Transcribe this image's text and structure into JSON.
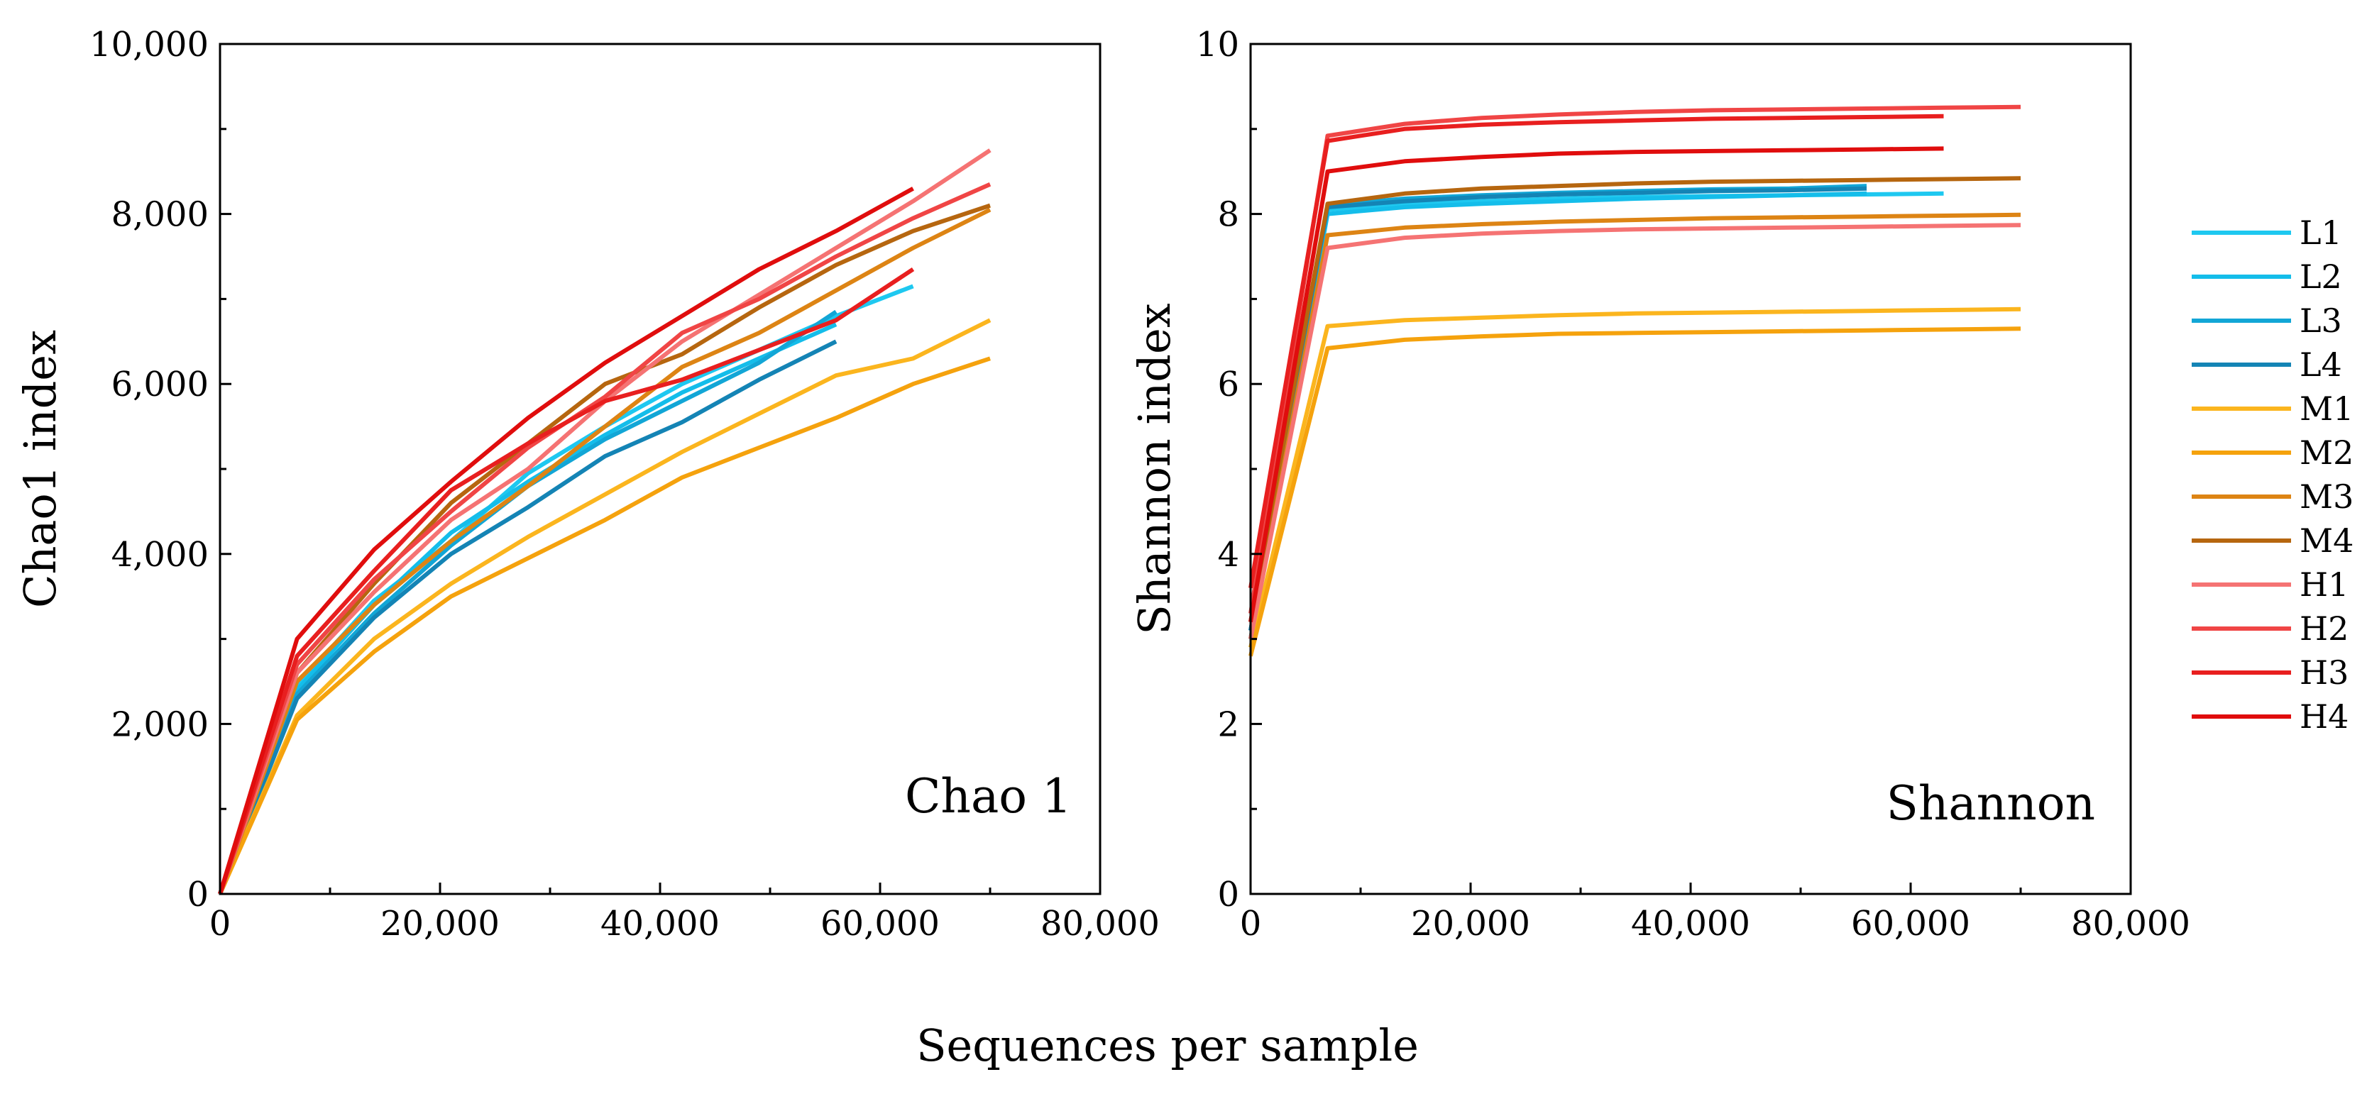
{
  "figure": {
    "xlabel": "Sequences per sample"
  },
  "legend": {
    "placement": "right",
    "entries": [
      "L1",
      "L2",
      "L3",
      "L4",
      "M1",
      "M2",
      "M3",
      "M4",
      "H1",
      "H2",
      "H3",
      "H4"
    ]
  },
  "colors": {
    "L1": "#1ec8f0",
    "L2": "#14bdea",
    "L3": "#12a6d6",
    "L4": "#1484b5",
    "M1": "#fbb51e",
    "M2": "#f5a20d",
    "M3": "#dd8414",
    "M4": "#b6660f",
    "H1": "#f57373",
    "H2": "#f04545",
    "H3": "#e81f1f",
    "H4": "#e00d0d"
  },
  "chart_data": [
    {
      "type": "line",
      "annotation": "Chao 1",
      "xlabel": "",
      "ylabel": "Chao1 index",
      "xlim": [
        0,
        80000
      ],
      "ylim": [
        0,
        10000
      ],
      "xticks": [
        "0",
        "20,000",
        "40,000",
        "60,000",
        "80,000"
      ],
      "yticks": [
        "0",
        "2,000",
        "4,000",
        "6,000",
        "8,000",
        "10,000"
      ],
      "grid": false,
      "series": [
        {
          "name": "L1",
          "x": [
            0,
            7000,
            14000,
            21000,
            28000,
            35000,
            42000,
            49000,
            56000,
            63000
          ],
          "y": [
            0,
            2450,
            3450,
            4150,
            4950,
            5500,
            6000,
            6400,
            6800,
            7150
          ]
        },
        {
          "name": "L2",
          "x": [
            0,
            7000,
            14000,
            21000,
            28000,
            35000,
            42000,
            49000,
            56000
          ],
          "y": [
            0,
            2400,
            3400,
            4250,
            4850,
            5400,
            5900,
            6300,
            6700
          ]
        },
        {
          "name": "L3",
          "x": [
            0,
            7000,
            14000,
            21000,
            28000,
            35000,
            42000,
            49000,
            56000
          ],
          "y": [
            0,
            2350,
            3300,
            4100,
            4800,
            5350,
            5800,
            6250,
            6850
          ]
        },
        {
          "name": "L4",
          "x": [
            0,
            7000,
            14000,
            21000,
            28000,
            35000,
            42000,
            49000,
            56000
          ],
          "y": [
            0,
            2300,
            3250,
            4000,
            4550,
            5150,
            5550,
            6050,
            6500
          ]
        },
        {
          "name": "M1",
          "x": [
            0,
            7000,
            14000,
            21000,
            28000,
            35000,
            42000,
            49000,
            56000,
            63000,
            70000
          ],
          "y": [
            0,
            2100,
            3000,
            3650,
            4200,
            4700,
            5200,
            5650,
            6100,
            6300,
            6750
          ]
        },
        {
          "name": "M2",
          "x": [
            0,
            7000,
            14000,
            21000,
            28000,
            35000,
            42000,
            49000,
            56000,
            63000,
            70000
          ],
          "y": [
            0,
            2050,
            2850,
            3500,
            3950,
            4400,
            4900,
            5250,
            5600,
            6000,
            6300
          ]
        },
        {
          "name": "M3",
          "x": [
            0,
            7000,
            14000,
            21000,
            28000,
            35000,
            42000,
            49000,
            56000,
            63000,
            70000
          ],
          "y": [
            0,
            2500,
            3400,
            4150,
            4800,
            5500,
            6200,
            6600,
            7100,
            7600,
            8050
          ]
        },
        {
          "name": "M4",
          "x": [
            0,
            7000,
            14000,
            21000,
            28000,
            35000,
            42000,
            49000,
            56000,
            63000,
            70000
          ],
          "y": [
            0,
            2600,
            3650,
            4600,
            5300,
            6000,
            6350,
            6900,
            7400,
            7800,
            8100
          ]
        },
        {
          "name": "H1",
          "x": [
            0,
            7000,
            14000,
            21000,
            28000,
            35000,
            42000,
            49000,
            56000,
            63000,
            70000
          ],
          "y": [
            0,
            2600,
            3550,
            4400,
            5000,
            5800,
            6500,
            7050,
            7600,
            8150,
            8750
          ]
        },
        {
          "name": "H2",
          "x": [
            0,
            7000,
            14000,
            21000,
            28000,
            35000,
            42000,
            49000,
            56000,
            63000,
            70000
          ],
          "y": [
            0,
            2700,
            3700,
            4500,
            5250,
            5850,
            6600,
            7000,
            7500,
            7950,
            8350
          ]
        },
        {
          "name": "H3",
          "x": [
            0,
            7000,
            14000,
            21000,
            28000,
            35000,
            42000,
            49000,
            56000,
            63000
          ],
          "y": [
            0,
            2800,
            3800,
            4750,
            5300,
            5800,
            6050,
            6400,
            6750,
            7350
          ]
        },
        {
          "name": "H4",
          "x": [
            0,
            7000,
            14000,
            21000,
            28000,
            35000,
            42000,
            49000,
            56000,
            63000
          ],
          "y": [
            0,
            3000,
            4050,
            4850,
            5600,
            6250,
            6800,
            7350,
            7800,
            8300
          ]
        }
      ]
    },
    {
      "type": "line",
      "annotation": "Shannon",
      "xlabel": "",
      "ylabel": "Shannon index",
      "xlim": [
        0,
        80000
      ],
      "ylim": [
        0,
        10
      ],
      "xticks": [
        "0",
        "20,000",
        "40,000",
        "60,000",
        "80,000"
      ],
      "yticks": [
        "0",
        "2",
        "4",
        "6",
        "8",
        "10"
      ],
      "grid": false,
      "series": [
        {
          "name": "L1",
          "x": [
            0,
            7000,
            14000,
            21000,
            28000,
            35000,
            42000,
            49000,
            56000,
            63000
          ],
          "y": [
            3.0,
            8.05,
            8.12,
            8.15,
            8.18,
            8.2,
            8.21,
            8.22,
            8.23,
            8.24
          ]
        },
        {
          "name": "L2",
          "x": [
            0,
            7000,
            14000,
            21000,
            28000,
            35000,
            42000,
            49000,
            56000
          ],
          "y": [
            3.0,
            8.0,
            8.08,
            8.12,
            8.15,
            8.18,
            8.2,
            8.22,
            8.24
          ]
        },
        {
          "name": "L3",
          "x": [
            0,
            7000,
            14000,
            21000,
            28000,
            35000,
            42000,
            49000,
            56000
          ],
          "y": [
            3.1,
            8.1,
            8.18,
            8.22,
            8.25,
            8.27,
            8.29,
            8.3,
            8.33
          ]
        },
        {
          "name": "L4",
          "x": [
            0,
            7000,
            14000,
            21000,
            28000,
            35000,
            42000,
            49000,
            56000
          ],
          "y": [
            3.1,
            8.08,
            8.15,
            8.2,
            8.23,
            8.25,
            8.27,
            8.28,
            8.3
          ]
        },
        {
          "name": "M1",
          "x": [
            0,
            7000,
            14000,
            21000,
            28000,
            35000,
            42000,
            49000,
            56000,
            63000,
            70000
          ],
          "y": [
            2.9,
            6.68,
            6.75,
            6.78,
            6.81,
            6.83,
            6.84,
            6.85,
            6.86,
            6.87,
            6.88
          ]
        },
        {
          "name": "M2",
          "x": [
            0,
            7000,
            14000,
            21000,
            28000,
            35000,
            42000,
            49000,
            56000,
            63000,
            70000
          ],
          "y": [
            2.8,
            6.42,
            6.52,
            6.56,
            6.59,
            6.6,
            6.61,
            6.62,
            6.63,
            6.64,
            6.65
          ]
        },
        {
          "name": "M3",
          "x": [
            0,
            7000,
            14000,
            21000,
            28000,
            35000,
            42000,
            49000,
            56000,
            63000,
            70000
          ],
          "y": [
            3.0,
            7.75,
            7.84,
            7.88,
            7.91,
            7.93,
            7.95,
            7.96,
            7.97,
            7.98,
            7.99
          ]
        },
        {
          "name": "M4",
          "x": [
            0,
            7000,
            14000,
            21000,
            28000,
            35000,
            42000,
            49000,
            56000,
            63000,
            70000
          ],
          "y": [
            3.2,
            8.12,
            8.24,
            8.3,
            8.33,
            8.36,
            8.38,
            8.39,
            8.4,
            8.41,
            8.42
          ]
        },
        {
          "name": "H1",
          "x": [
            0,
            7000,
            14000,
            21000,
            28000,
            35000,
            42000,
            49000,
            56000,
            63000,
            70000
          ],
          "y": [
            3.0,
            7.6,
            7.72,
            7.77,
            7.8,
            7.82,
            7.83,
            7.84,
            7.85,
            7.86,
            7.87
          ]
        },
        {
          "name": "H2",
          "x": [
            0,
            7000,
            14000,
            21000,
            28000,
            35000,
            42000,
            49000,
            56000,
            63000,
            70000
          ],
          "y": [
            3.3,
            8.92,
            9.06,
            9.13,
            9.17,
            9.2,
            9.22,
            9.23,
            9.24,
            9.25,
            9.26
          ]
        },
        {
          "name": "H3",
          "x": [
            0,
            7000,
            14000,
            21000,
            28000,
            35000,
            42000,
            49000,
            56000,
            63000
          ],
          "y": [
            3.6,
            8.86,
            9.0,
            9.05,
            9.08,
            9.1,
            9.12,
            9.13,
            9.14,
            9.15
          ]
        },
        {
          "name": "H4",
          "x": [
            0,
            7000,
            14000,
            21000,
            28000,
            35000,
            42000,
            49000,
            56000,
            63000
          ],
          "y": [
            3.2,
            8.5,
            8.62,
            8.67,
            8.71,
            8.73,
            8.74,
            8.75,
            8.76,
            8.77
          ]
        }
      ]
    }
  ]
}
